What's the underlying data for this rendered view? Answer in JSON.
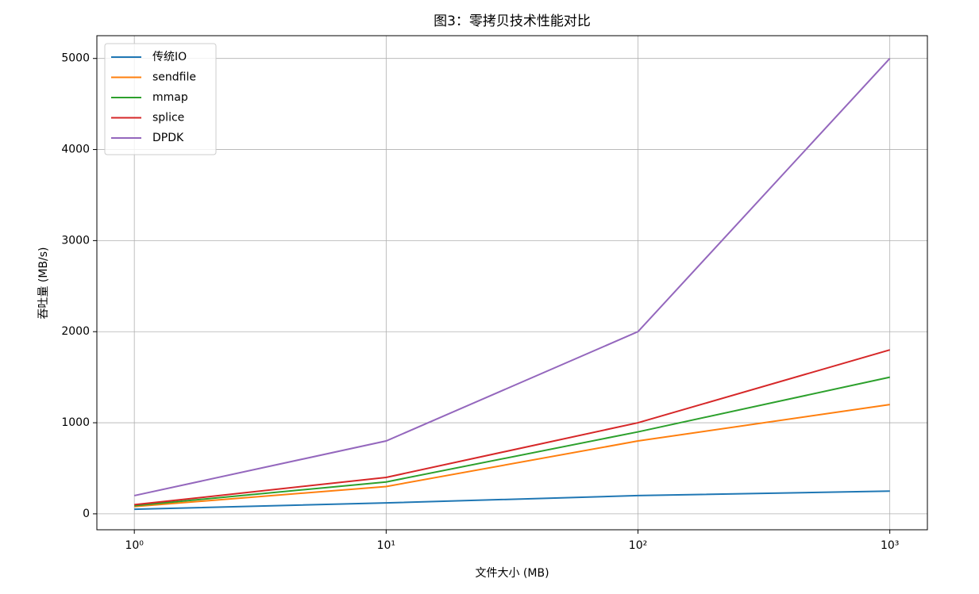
{
  "chart_data": {
    "type": "line",
    "title": "图3：零拷贝技术性能对比",
    "x_label": "文件大小 (MB)",
    "y_label": "吞吐量 (MB/s)",
    "x": [
      1,
      10,
      100,
      1000
    ],
    "xscale": "log",
    "xlim": [
      0.71,
      1410
    ],
    "ylim": [
      -175,
      5250
    ],
    "xticks": [
      {
        "value": 1,
        "label": "10⁰"
      },
      {
        "value": 10,
        "label": "10¹"
      },
      {
        "value": 100,
        "label": "10²"
      },
      {
        "value": 1000,
        "label": "10³"
      }
    ],
    "yticks": [
      0,
      1000,
      2000,
      3000,
      4000,
      5000
    ],
    "grid": true,
    "legend": "upper-left",
    "series": [
      {
        "name": "传统IO",
        "color": "#1f77b4",
        "values": [
          50,
          120,
          200,
          250
        ]
      },
      {
        "name": "sendfile",
        "color": "#ff7f0e",
        "values": [
          80,
          300,
          800,
          1200
        ]
      },
      {
        "name": "mmap",
        "color": "#2ca02c",
        "values": [
          90,
          350,
          900,
          1500
        ]
      },
      {
        "name": "splice",
        "color": "#d62728",
        "values": [
          100,
          400,
          1000,
          1800
        ]
      },
      {
        "name": "DPDK",
        "color": "#9467bd",
        "values": [
          200,
          800,
          2000,
          5000
        ]
      }
    ]
  }
}
